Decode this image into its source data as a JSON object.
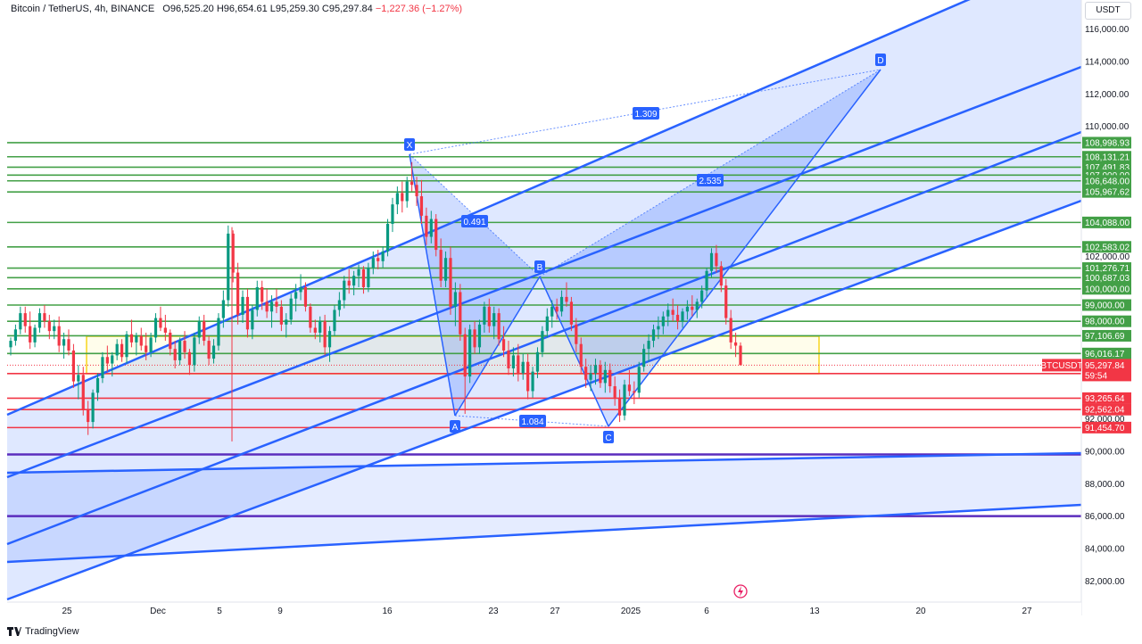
{
  "header": {
    "symbol": "Bitcoin / TetherUS, 4h, BINANCE",
    "open": "O96,525.20",
    "high": "H96,654.61",
    "low": "L95,259.30",
    "close": "C95,297.84",
    "change": "−1,227.36 (−1.27%)"
  },
  "currency": "USDT",
  "footer": {
    "brand": "TradingView",
    "logo_icon": "tradingview-logo-icon"
  },
  "chart_data": {
    "type": "candlestick",
    "symbol": "BTCUSDT",
    "timeframe": "4h",
    "ylim": [
      80800,
      117600
    ],
    "yticks": [
      "116,000.00",
      "114,000.00",
      "112,000.00",
      "110,000.00",
      "102,000.00",
      "92,000.00",
      "90,000.00",
      "88,000.00",
      "86,000.00",
      "84,000.00",
      "82,000.00"
    ],
    "xticks": [
      "25",
      "Dec",
      "5",
      "9",
      "16",
      "23",
      "27",
      "2025",
      "6",
      "13",
      "20",
      "27"
    ],
    "last_price": {
      "label": "BTCUSDT",
      "value": "95,297.84",
      "countdown": "59:54",
      "color": "#f23645"
    },
    "horizontal_levels": [
      {
        "value": 108998.93,
        "label": "108,998.93",
        "color": "#43a047"
      },
      {
        "value": 108131.21,
        "label": "108,131.21",
        "color": "#43a047"
      },
      {
        "value": 107491.83,
        "label": "107,491.83",
        "color": "#43a047"
      },
      {
        "value": 107000.0,
        "label": "107,000.00",
        "color": "#43a047"
      },
      {
        "value": 106648.0,
        "label": "106,648.00",
        "color": "#43a047"
      },
      {
        "value": 105967.62,
        "label": "105,967.62",
        "color": "#43a047"
      },
      {
        "value": 104088.0,
        "label": "104,088.00",
        "color": "#43a047"
      },
      {
        "value": 102583.02,
        "label": "102,583.02",
        "color": "#43a047"
      },
      {
        "value": 101276.71,
        "label": "101,276.71",
        "color": "#43a047"
      },
      {
        "value": 100687.03,
        "label": "100,687.03",
        "color": "#43a047"
      },
      {
        "value": 100000.0,
        "label": "100,000.00",
        "color": "#43a047"
      },
      {
        "value": 99000.0,
        "label": "99,000.00",
        "color": "#43a047"
      },
      {
        "value": 98000.0,
        "label": "98,000.00",
        "color": "#43a047"
      },
      {
        "value": 97106.69,
        "label": "97,106.69",
        "color": "#43a047"
      },
      {
        "value": 96016.17,
        "label": "96,016.17",
        "color": "#43a047"
      },
      {
        "value": 94780.97,
        "label": "94,780.97",
        "color": "#f23645"
      },
      {
        "value": 93265.64,
        "label": "93,265.64",
        "color": "#f23645"
      },
      {
        "value": 92562.04,
        "label": "92,562.04",
        "color": "#f23645"
      },
      {
        "value": 91454.7,
        "label": "91,454.70",
        "color": "#f23645"
      }
    ],
    "purple_levels": [
      89800,
      86000
    ],
    "harmonic_pattern": {
      "points": [
        {
          "name": "X",
          "value": 107000
        },
        {
          "name": "A",
          "value": 92300
        },
        {
          "name": "B",
          "value": 100600
        },
        {
          "name": "C",
          "value": 91700
        },
        {
          "name": "D",
          "value": 113400
        }
      ],
      "ratios": [
        "0.491",
        "1.084",
        "2.535",
        "1.309"
      ]
    },
    "candles_ohlc": [
      [
        96400,
        97000,
        95900,
        96800
      ],
      [
        96800,
        97800,
        96500,
        97500
      ],
      [
        97500,
        98900,
        97200,
        98500
      ],
      [
        98500,
        98900,
        97300,
        97700
      ],
      [
        97700,
        98600,
        96300,
        96700
      ],
      [
        96700,
        97800,
        96400,
        97600
      ],
      [
        97600,
        98800,
        97300,
        98500
      ],
      [
        98500,
        99000,
        97600,
        98000
      ],
      [
        98000,
        98400,
        96900,
        97400
      ],
      [
        97400,
        98100,
        96900,
        97700
      ],
      [
        97700,
        98300,
        96100,
        96500
      ],
      [
        96500,
        97300,
        95700,
        96900
      ],
      [
        96900,
        97500,
        95900,
        96200
      ],
      [
        96200,
        96600,
        93900,
        94300
      ],
      [
        94300,
        95300,
        93200,
        94700
      ],
      [
        94700,
        95200,
        92200,
        92600
      ],
      [
        92600,
        93100,
        91000,
        91800
      ],
      [
        91800,
        93800,
        91400,
        93600
      ],
      [
        93600,
        94800,
        93100,
        94500
      ],
      [
        94500,
        96100,
        94200,
        95800
      ],
      [
        95800,
        96500,
        94900,
        95400
      ],
      [
        95400,
        96100,
        94600,
        95900
      ],
      [
        95900,
        96900,
        95600,
        96600
      ],
      [
        96600,
        96900,
        95500,
        95800
      ],
      [
        95800,
        97400,
        95400,
        97200
      ],
      [
        97200,
        98100,
        96400,
        96700
      ],
      [
        96700,
        97300,
        95900,
        97100
      ],
      [
        97100,
        97600,
        96200,
        96500
      ],
      [
        96500,
        97300,
        95600,
        96100
      ],
      [
        96100,
        97300,
        95800,
        97000
      ],
      [
        97000,
        98500,
        96700,
        98200
      ],
      [
        98200,
        98900,
        97400,
        97600
      ],
      [
        97600,
        98400,
        96800,
        97300
      ],
      [
        97300,
        97500,
        95900,
        96300
      ],
      [
        96300,
        96800,
        95100,
        95600
      ],
      [
        95600,
        97000,
        95300,
        96800
      ],
      [
        96800,
        97400,
        95700,
        96100
      ],
      [
        96100,
        96300,
        94700,
        95300
      ],
      [
        95300,
        97300,
        94900,
        97000
      ],
      [
        97000,
        98300,
        96600,
        98000
      ],
      [
        98000,
        98400,
        96500,
        96800
      ],
      [
        96800,
        97100,
        95300,
        95700
      ],
      [
        95700,
        96900,
        95400,
        96500
      ],
      [
        96500,
        98500,
        96200,
        98200
      ],
      [
        98200,
        99900,
        97600,
        99300
      ],
      [
        99300,
        103900,
        98900,
        103400
      ],
      [
        103400,
        103600,
        100400,
        101000
      ],
      [
        101000,
        101600,
        97800,
        98400
      ],
      [
        98400,
        99900,
        97900,
        99500
      ],
      [
        99500,
        100000,
        97000,
        97500
      ],
      [
        97500,
        99000,
        96900,
        98700
      ],
      [
        98700,
        100500,
        98300,
        100100
      ],
      [
        100100,
        100500,
        98700,
        99200
      ],
      [
        99200,
        100000,
        98200,
        98600
      ],
      [
        98600,
        99600,
        97600,
        99200
      ],
      [
        99200,
        100000,
        98500,
        98900
      ],
      [
        98900,
        99300,
        97400,
        97800
      ],
      [
        97800,
        98500,
        97000,
        98100
      ],
      [
        98100,
        99700,
        97800,
        99400
      ],
      [
        99400,
        100300,
        98600,
        99800
      ],
      [
        99800,
        100900,
        99300,
        100100
      ],
      [
        100100,
        100400,
        98600,
        98900
      ],
      [
        98900,
        99100,
        97300,
        97600
      ],
      [
        97600,
        98100,
        96900,
        97300
      ],
      [
        97300,
        98300,
        96700,
        98000
      ],
      [
        98000,
        98400,
        95900,
        96400
      ],
      [
        96400,
        97700,
        95500,
        97400
      ],
      [
        97400,
        99000,
        97100,
        98700
      ],
      [
        98700,
        99800,
        98300,
        99300
      ],
      [
        99300,
        100800,
        98800,
        100500
      ],
      [
        100500,
        101200,
        99700,
        100200
      ],
      [
        100200,
        101100,
        99600,
        100800
      ],
      [
        100800,
        101500,
        100100,
        101200
      ],
      [
        101200,
        101400,
        99700,
        100100
      ],
      [
        100100,
        101600,
        99800,
        101300
      ],
      [
        101300,
        102300,
        100900,
        101900
      ],
      [
        101900,
        102400,
        101200,
        101700
      ],
      [
        101700,
        102600,
        101300,
        102300
      ],
      [
        102300,
        104300,
        102000,
        104000
      ],
      [
        104000,
        105600,
        103500,
        105200
      ],
      [
        105200,
        106300,
        104600,
        105900
      ],
      [
        105900,
        106600,
        104700,
        105400
      ],
      [
        105400,
        106900,
        105000,
        106600
      ],
      [
        106600,
        107800,
        106000,
        106400
      ],
      [
        106400,
        106900,
        105100,
        105700
      ],
      [
        105700,
        106700,
        104000,
        104500
      ],
      [
        104500,
        105000,
        102700,
        103200
      ],
      [
        103200,
        104800,
        102800,
        104300
      ],
      [
        104300,
        104600,
        102000,
        102400
      ],
      [
        102400,
        103100,
        100100,
        100500
      ],
      [
        100500,
        102300,
        100100,
        101900
      ],
      [
        101900,
        102600,
        98400,
        98900
      ],
      [
        98900,
        100400,
        97700,
        99800
      ],
      [
        99800,
        100300,
        96800,
        97200
      ],
      [
        97200,
        97600,
        92300,
        94600
      ],
      [
        94600,
        97800,
        94200,
        97500
      ],
      [
        97500,
        98000,
        96000,
        96400
      ],
      [
        96400,
        98100,
        96000,
        97800
      ],
      [
        97800,
        99200,
        97300,
        98900
      ],
      [
        98900,
        99400,
        97300,
        97700
      ],
      [
        97700,
        98900,
        96900,
        98500
      ],
      [
        98500,
        98800,
        96500,
        96900
      ],
      [
        96900,
        97700,
        95800,
        96200
      ],
      [
        96200,
        96800,
        94700,
        95100
      ],
      [
        95100,
        96400,
        94600,
        95900
      ],
      [
        95900,
        96600,
        94300,
        94800
      ],
      [
        94800,
        96000,
        94400,
        95500
      ],
      [
        95500,
        96000,
        93200,
        93700
      ],
      [
        93700,
        95200,
        93300,
        94900
      ],
      [
        94900,
        96400,
        94500,
        96100
      ],
      [
        96100,
        97700,
        95800,
        97400
      ],
      [
        97400,
        98800,
        97000,
        98300
      ],
      [
        98300,
        99300,
        97600,
        98900
      ],
      [
        98900,
        99400,
        98100,
        98600
      ],
      [
        98600,
        99900,
        98300,
        99500
      ],
      [
        99500,
        100400,
        98900,
        99200
      ],
      [
        99200,
        99500,
        97400,
        97800
      ],
      [
        97800,
        98200,
        96100,
        96600
      ],
      [
        96600,
        97000,
        94800,
        95200
      ],
      [
        95200,
        95700,
        93900,
        94400
      ],
      [
        94400,
        95300,
        93700,
        94800
      ],
      [
        94800,
        95700,
        94100,
        95300
      ],
      [
        95300,
        95600,
        93900,
        94200
      ],
      [
        94200,
        95500,
        93600,
        95000
      ],
      [
        95000,
        95400,
        93600,
        94000
      ],
      [
        94000,
        94600,
        92800,
        93300
      ],
      [
        93300,
        93800,
        91800,
        92200
      ],
      [
        92200,
        94400,
        91900,
        94100
      ],
      [
        94100,
        95000,
        93400,
        93700
      ],
      [
        93700,
        94300,
        92900,
        93600
      ],
      [
        93600,
        95500,
        93300,
        95200
      ],
      [
        95200,
        96600,
        94900,
        96300
      ],
      [
        96300,
        97200,
        95500,
        96800
      ],
      [
        96800,
        97800,
        96400,
        97500
      ],
      [
        97500,
        98300,
        96900,
        97700
      ],
      [
        97700,
        98600,
        97200,
        98300
      ],
      [
        98300,
        99100,
        97700,
        98700
      ],
      [
        98700,
        99400,
        98000,
        98400
      ],
      [
        98400,
        99000,
        97500,
        98000
      ],
      [
        98000,
        98800,
        97600,
        98600
      ],
      [
        98600,
        99300,
        98100,
        98900
      ],
      [
        98900,
        99600,
        98300,
        98700
      ],
      [
        98700,
        99400,
        98200,
        99200
      ],
      [
        99200,
        100200,
        98800,
        99900
      ],
      [
        99900,
        101300,
        99500,
        101100
      ],
      [
        101100,
        102500,
        100700,
        102200
      ],
      [
        102200,
        102700,
        101000,
        101400
      ],
      [
        101400,
        101700,
        99800,
        100200
      ],
      [
        100200,
        100600,
        97800,
        98200
      ],
      [
        98200,
        98700,
        96300,
        96700
      ],
      [
        96700,
        97300,
        95800,
        96500
      ],
      [
        96500,
        96700,
        95300,
        95300
      ]
    ]
  }
}
